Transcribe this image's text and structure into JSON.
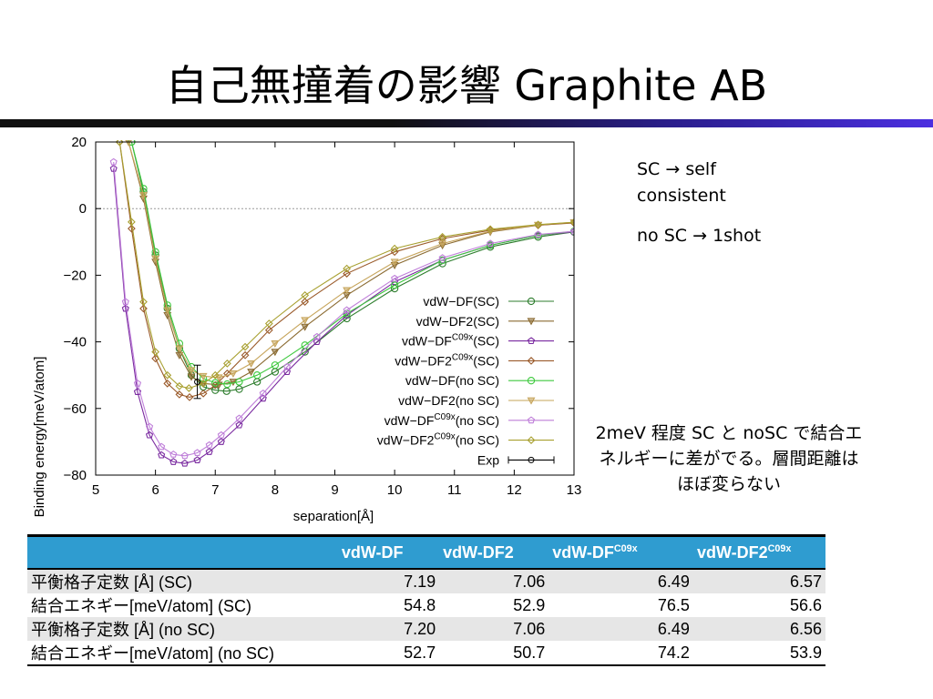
{
  "title": "自己無撞着の影響 Graphite AB",
  "notes": {
    "sc_prefix": "SC",
    "sc_suffix": "self consistent",
    "nosc_prefix": "no SC",
    "nosc_suffix": "1shot",
    "difference": "2meV 程度 SC と noSC で結合エネルギーに差がでる。層間距離はほぼ変らない"
  },
  "table": {
    "headers": [
      "",
      "vdW-DF",
      "vdW-DF2",
      "vdW-DF",
      "vdW-DF2"
    ],
    "header_sup": [
      "",
      "",
      "",
      "C09x",
      "C09x"
    ],
    "rows": [
      {
        "label": "平衡格子定数  [Å] (SC)",
        "values": [
          "7.19",
          "7.06",
          "6.49",
          "6.57"
        ]
      },
      {
        "label": "結合エネギー[meV/atom] (SC)",
        "values": [
          "54.8",
          "52.9",
          "76.5",
          "56.6"
        ]
      },
      {
        "label": "平衡格子定数  [Å] (no SC)",
        "values": [
          "7.20",
          "7.06",
          "6.49",
          "6.56"
        ]
      },
      {
        "label": "結合エネギー[meV/atom] (no SC)",
        "values": [
          "52.7",
          "50.7",
          "74.2",
          "53.9"
        ]
      }
    ]
  },
  "colors": {
    "vdwdf_sc": "#2d7d2d",
    "vdwdf2_sc": "#8a6a30",
    "c09_df_sc": "#7a2aa0",
    "c09_df2_sc": "#9a5a2a",
    "vdwdf_nosc": "#3ec93e",
    "vdwdf2_nosc": "#c6a45a",
    "c09_df_nosc": "#bf7fd9",
    "c09_df2_nosc": "#a8a030",
    "exp": "#000000",
    "header_bg": "#2f9cd0"
  },
  "chart_data": {
    "type": "line",
    "xlabel": "separation[Å]",
    "ylabel": "Binding energy[meV/atom]",
    "xlim": [
      5,
      13
    ],
    "ylim": [
      -80,
      20
    ],
    "xticks": [
      "5",
      "6",
      "7",
      "8",
      "9",
      "10",
      "11",
      "12",
      "13"
    ],
    "yticks": [
      "20",
      "0",
      "−20",
      "−40",
      "−60",
      "−80"
    ],
    "grid": "dotted line at y=0",
    "legend_position": "right-center",
    "series": [
      {
        "name": "vdW−DF(SC)",
        "label_main": "vdW−DF",
        "label_sup": "",
        "label_tail": "(SC)",
        "color_key": "vdwdf_sc",
        "marker": "circle",
        "x": [
          5.6,
          5.8,
          6.0,
          6.2,
          6.4,
          6.6,
          6.8,
          7.0,
          7.19,
          7.4,
          7.7,
          8.0,
          8.5,
          9.2,
          10.0,
          10.8,
          11.6,
          12.4,
          13.0
        ],
        "y": [
          20,
          5,
          -14,
          -30,
          -42,
          -50,
          -53.5,
          -54.5,
          -54.8,
          -54.2,
          -52,
          -49,
          -43,
          -33,
          -24,
          -16.5,
          -11.5,
          -8.5,
          -7
        ]
      },
      {
        "name": "vdW−DF2(SC)",
        "label_main": "vdW−DF2",
        "label_sup": "",
        "label_tail": "(SC)",
        "color_key": "vdwdf2_sc",
        "marker": "triangle",
        "x": [
          5.55,
          5.8,
          6.0,
          6.2,
          6.4,
          6.6,
          6.8,
          7.06,
          7.3,
          7.6,
          8.0,
          8.5,
          9.2,
          10.0,
          10.8,
          11.6,
          12.4,
          13.0
        ],
        "y": [
          20,
          3,
          -16,
          -32,
          -44,
          -50.5,
          -52.5,
          -52.9,
          -52,
          -49,
          -43,
          -35.5,
          -26,
          -17,
          -11,
          -7,
          -5,
          -4.2
        ]
      },
      {
        "name": "vdW−DFC09x(SC)",
        "label_main": "vdW−DF",
        "label_sup": "C09x",
        "label_tail": "(SC)",
        "color_key": "c09_df_sc",
        "marker": "pentagon",
        "x": [
          5.3,
          5.5,
          5.7,
          5.9,
          6.1,
          6.3,
          6.49,
          6.7,
          6.9,
          7.1,
          7.4,
          7.8,
          8.2,
          8.7,
          9.2,
          10.0,
          10.8,
          11.6,
          12.4,
          13.0
        ],
        "y": [
          12,
          -30,
          -55,
          -68,
          -74,
          -76,
          -76.5,
          -75.5,
          -73,
          -70,
          -65,
          -57,
          -49,
          -40,
          -32,
          -22,
          -15.5,
          -11,
          -8,
          -7
        ]
      },
      {
        "name": "vdW−DF2C09x(SC)",
        "label_main": "vdW−DF2",
        "label_sup": "C09x",
        "label_tail": "(SC)",
        "color_key": "c09_df2_sc",
        "marker": "diamond",
        "x": [
          5.4,
          5.6,
          5.8,
          6.0,
          6.2,
          6.4,
          6.57,
          6.8,
          7.0,
          7.2,
          7.5,
          7.9,
          8.5,
          9.2,
          10.0,
          10.8,
          11.6,
          12.4,
          13.0
        ],
        "y": [
          20,
          -6,
          -30,
          -45,
          -52.5,
          -55.8,
          -56.6,
          -55.5,
          -53,
          -49.5,
          -44,
          -36.5,
          -28,
          -19.5,
          -13,
          -9,
          -6.5,
          -5,
          -4.3
        ]
      },
      {
        "name": "vdW−DF(no SC)",
        "label_main": "vdW−DF",
        "label_sup": "",
        "label_tail": "(no SC)",
        "color_key": "vdwdf_nosc",
        "marker": "circle",
        "x": [
          5.6,
          5.8,
          6.0,
          6.2,
          6.4,
          6.6,
          6.8,
          7.0,
          7.2,
          7.4,
          7.7,
          8.0,
          8.5,
          9.2,
          10.0,
          10.8,
          11.6,
          12.4,
          13.0
        ],
        "y": [
          20,
          6,
          -13,
          -29,
          -40.5,
          -47.5,
          -51,
          -52.3,
          -52.7,
          -52,
          -50,
          -47,
          -41,
          -31.5,
          -23,
          -15.5,
          -11,
          -8,
          -6.8
        ]
      },
      {
        "name": "vdW−DF2(no SC)",
        "label_main": "vdW−DF2",
        "label_sup": "",
        "label_tail": "(no SC)",
        "color_key": "vdwdf2_nosc",
        "marker": "triangle",
        "x": [
          5.55,
          5.8,
          6.0,
          6.2,
          6.4,
          6.6,
          6.8,
          7.06,
          7.3,
          7.6,
          8.0,
          8.5,
          9.2,
          10.0,
          10.8,
          11.6,
          12.4,
          13.0
        ],
        "y": [
          20,
          4,
          -15,
          -30.5,
          -42,
          -48.5,
          -50.3,
          -50.7,
          -49.5,
          -46.5,
          -40.5,
          -33.5,
          -24.5,
          -16,
          -10.5,
          -6.8,
          -4.9,
          -4.1
        ]
      },
      {
        "name": "vdW−DFC09x(no SC)",
        "label_main": "vdW−DF",
        "label_sup": "C09x",
        "label_tail": "(no SC)",
        "color_key": "c09_df_nosc",
        "marker": "pentagon",
        "x": [
          5.3,
          5.5,
          5.7,
          5.9,
          6.1,
          6.3,
          6.49,
          6.7,
          6.9,
          7.1,
          7.4,
          7.8,
          8.2,
          8.7,
          9.2,
          10.0,
          10.8,
          11.6,
          12.4,
          13.0
        ],
        "y": [
          14,
          -28,
          -52.5,
          -65.5,
          -71.5,
          -73.8,
          -74.2,
          -73.3,
          -71,
          -68,
          -63,
          -55.5,
          -47.5,
          -38.5,
          -30.5,
          -21,
          -14.8,
          -10.5,
          -7.8,
          -6.8
        ]
      },
      {
        "name": "vdW−DF2C09x(no SC)",
        "label_main": "vdW−DF2",
        "label_sup": "C09x",
        "label_tail": "(no SC)",
        "color_key": "c09_df2_nosc",
        "marker": "diamond",
        "x": [
          5.4,
          5.6,
          5.8,
          6.0,
          6.2,
          6.4,
          6.56,
          6.8,
          7.0,
          7.2,
          7.5,
          7.9,
          8.5,
          9.2,
          10.0,
          10.8,
          11.6,
          12.4,
          13.0
        ],
        "y": [
          20,
          -4,
          -28,
          -43,
          -50,
          -53.3,
          -53.9,
          -52.5,
          -50,
          -46.5,
          -41.5,
          -34.5,
          -26,
          -18,
          -12,
          -8.5,
          -6.2,
          -4.8,
          -4.1
        ]
      },
      {
        "name": "Exp",
        "label_main": "Exp",
        "label_sup": "",
        "label_tail": "",
        "color_key": "exp",
        "marker": "errorbar",
        "x": [
          6.7
        ],
        "y": [
          -52
        ],
        "yerr": [
          5
        ]
      }
    ]
  }
}
